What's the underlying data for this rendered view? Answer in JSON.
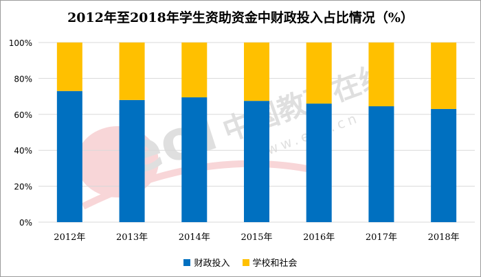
{
  "chart_data": {
    "type": "bar",
    "stacked": true,
    "title": "2012年至2018年学生资助资金中财政投入占比情况（%）",
    "categories": [
      "2012年",
      "2013年",
      "2014年",
      "2015年",
      "2016年",
      "2017年",
      "2018年"
    ],
    "series": [
      {
        "name": "财政投入",
        "color": "#0070C0",
        "values": [
          73,
          68,
          69.5,
          67.5,
          66,
          64.5,
          63
        ]
      },
      {
        "name": "学校和社会",
        "color": "#FFC000",
        "values": [
          27,
          32,
          30.5,
          32.5,
          34,
          35.5,
          37
        ]
      }
    ],
    "ylim": [
      0,
      100
    ],
    "yticks": [
      "0%",
      "20%",
      "40%",
      "60%",
      "80%",
      "100%"
    ],
    "grid": true,
    "legend": "bottom"
  },
  "watermark": {
    "text": "中国教育在线",
    "url": "www.eol.cn",
    "logo": "eol"
  }
}
